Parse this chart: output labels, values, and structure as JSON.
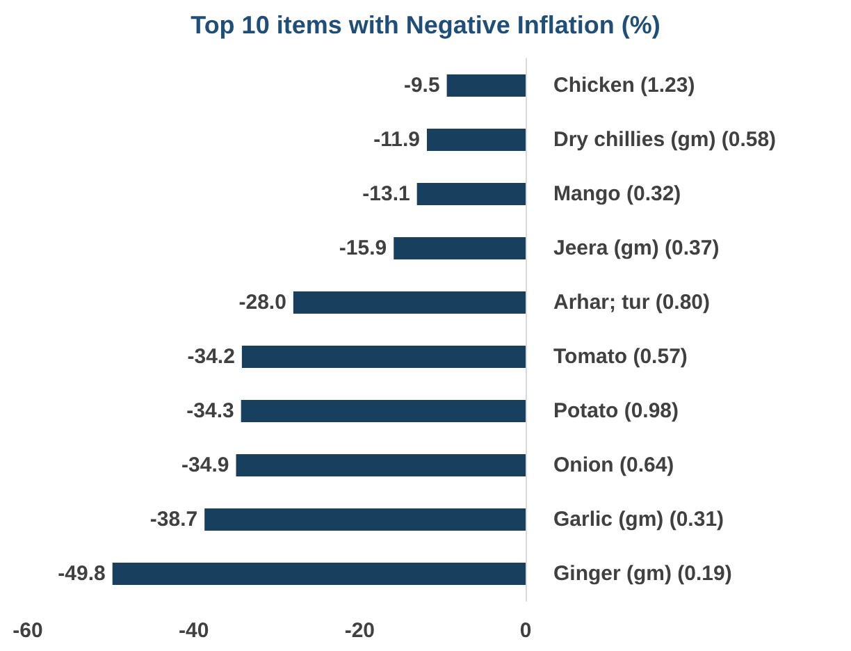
{
  "chart_data": {
    "type": "bar",
    "orientation": "horizontal",
    "title": "Top 10 items with Negative Inflation (%)",
    "categories": [
      "Chicken (1.23)",
      "Dry chillies (gm) (0.58)",
      "Mango (0.32)",
      "Jeera (gm) (0.37)",
      "Arhar; tur (0.80)",
      "Tomato (0.57)",
      "Potato (0.98)",
      "Onion (0.64)",
      "Garlic (gm) (0.31)",
      "Ginger (gm) (0.19)"
    ],
    "values": [
      -9.5,
      -11.9,
      -13.1,
      -15.9,
      -28.0,
      -34.2,
      -34.3,
      -34.9,
      -38.7,
      -49.8
    ],
    "value_labels": [
      "-9.5",
      "-11.9",
      "-13.1",
      "-15.9",
      "-28.0",
      "-34.2",
      "-34.3",
      "-34.9",
      "-38.7",
      "-49.8"
    ],
    "color": "#18405e",
    "xlim": [
      -60,
      0
    ],
    "xticks": [
      -60,
      -40,
      -20,
      0
    ]
  }
}
